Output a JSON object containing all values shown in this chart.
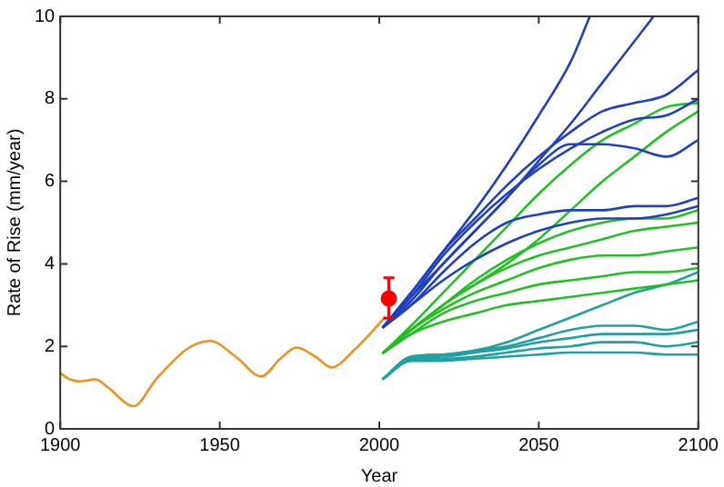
{
  "chart_data": {
    "type": "line",
    "xlabel": "Year",
    "ylabel": "Rate of Rise (mm/year)",
    "xlim": [
      1900,
      2100
    ],
    "xticks": [
      1900,
      1950,
      2000,
      2050,
      2100
    ],
    "ylim": [
      0,
      10
    ],
    "yticks": [
      0,
      2,
      4,
      6,
      8,
      10
    ],
    "marker": "none",
    "line_style": "solid",
    "series": [
      {
        "color": "#f0901e",
        "x": [
          1900,
          1903,
          1906,
          1911,
          1915,
          1923,
          1930,
          1940,
          1947,
          1955,
          1963,
          1969,
          1974,
          1980,
          1985,
          1992,
          2002
        ],
        "values": [
          1.35,
          1.2,
          1.15,
          1.2,
          1.0,
          0.55,
          1.2,
          1.95,
          2.13,
          1.75,
          1.27,
          1.7,
          1.97,
          1.75,
          1.49,
          1.9,
          2.72
        ]
      },
      {
        "color": "#2040c0",
        "x": [
          2001,
          2010,
          2020,
          2030,
          2040,
          2050,
          2060,
          2066
        ],
        "values": [
          2.45,
          3.3,
          4.3,
          5.3,
          6.4,
          7.6,
          8.9,
          10
        ]
      },
      {
        "color": "#2040c0",
        "x": [
          2001,
          2010,
          2020,
          2030,
          2040,
          2050,
          2060,
          2070,
          2080,
          2086
        ],
        "values": [
          2.45,
          3.2,
          4.0,
          4.8,
          5.6,
          6.5,
          7.4,
          8.4,
          9.4,
          10
        ]
      },
      {
        "color": "#2040c0",
        "x": [
          2001,
          2010,
          2020,
          2030,
          2040,
          2050,
          2060,
          2070,
          2080,
          2090,
          2100
        ],
        "values": [
          2.45,
          3.3,
          4.3,
          5.1,
          5.9,
          6.6,
          7.2,
          7.7,
          7.9,
          8.1,
          8.7
        ]
      },
      {
        "color": "#2040c0",
        "x": [
          2001,
          2010,
          2020,
          2030,
          2040,
          2050,
          2060,
          2070,
          2080,
          2090,
          2100
        ],
        "values": [
          2.45,
          3.2,
          4.2,
          5.0,
          5.7,
          6.3,
          6.8,
          7.2,
          7.5,
          7.6,
          8.0
        ]
      },
      {
        "color": "#2040c0",
        "x": [
          2001,
          2010,
          2020,
          2030,
          2040,
          2050,
          2060,
          2070,
          2080,
          2090,
          2100
        ],
        "values": [
          2.45,
          3.1,
          4.0,
          4.8,
          5.6,
          6.4,
          6.9,
          6.9,
          6.8,
          6.6,
          7.0
        ]
      },
      {
        "color": "#2040c0",
        "x": [
          2001,
          2010,
          2020,
          2030,
          2040,
          2050,
          2060,
          2070,
          2080,
          2090,
          2100
        ],
        "values": [
          2.45,
          3.0,
          3.8,
          4.5,
          5.0,
          5.2,
          5.3,
          5.3,
          5.4,
          5.4,
          5.6
        ]
      },
      {
        "color": "#2040c0",
        "x": [
          2001,
          2010,
          2020,
          2030,
          2040,
          2050,
          2060,
          2070,
          2080,
          2090,
          2100
        ],
        "values": [
          2.45,
          3.0,
          3.6,
          4.1,
          4.5,
          4.8,
          5.0,
          5.1,
          5.1,
          5.2,
          5.4
        ]
      },
      {
        "color": "#22c022",
        "x": [
          2001,
          2010,
          2020,
          2030,
          2040,
          2050,
          2060,
          2070,
          2080,
          2090,
          2100
        ],
        "values": [
          1.83,
          2.5,
          3.3,
          4.1,
          4.9,
          5.7,
          6.4,
          7.0,
          7.4,
          7.8,
          7.9
        ]
      },
      {
        "color": "#22c022",
        "x": [
          2001,
          2010,
          2020,
          2030,
          2040,
          2050,
          2060,
          2070,
          2080,
          2090,
          2100
        ],
        "values": [
          1.83,
          2.4,
          3.0,
          3.5,
          4.0,
          4.6,
          5.3,
          6.0,
          6.6,
          7.2,
          7.7
        ]
      },
      {
        "color": "#22c022",
        "x": [
          2001,
          2010,
          2020,
          2030,
          2040,
          2050,
          2060,
          2070,
          2080,
          2090,
          2100
        ],
        "values": [
          1.83,
          2.4,
          3.0,
          3.6,
          4.1,
          4.5,
          4.8,
          5.0,
          5.1,
          5.1,
          5.3
        ]
      },
      {
        "color": "#22c022",
        "x": [
          2001,
          2010,
          2020,
          2030,
          2040,
          2050,
          2060,
          2070,
          2080,
          2090,
          2100
        ],
        "values": [
          1.83,
          2.4,
          3.0,
          3.5,
          3.9,
          4.2,
          4.4,
          4.6,
          4.8,
          4.9,
          5.0
        ]
      },
      {
        "color": "#22c022",
        "x": [
          2001,
          2010,
          2020,
          2030,
          2040,
          2050,
          2060,
          2070,
          2080,
          2090,
          2100
        ],
        "values": [
          1.83,
          2.4,
          2.9,
          3.3,
          3.6,
          3.9,
          4.1,
          4.2,
          4.2,
          4.3,
          4.4
        ]
      },
      {
        "color": "#22c022",
        "x": [
          2001,
          2010,
          2020,
          2030,
          2040,
          2050,
          2060,
          2070,
          2080,
          2090,
          2100
        ],
        "values": [
          1.83,
          2.3,
          2.8,
          3.1,
          3.3,
          3.5,
          3.6,
          3.7,
          3.8,
          3.8,
          3.9
        ]
      },
      {
        "color": "#22c022",
        "x": [
          2001,
          2010,
          2020,
          2030,
          2040,
          2050,
          2060,
          2070,
          2080,
          2090,
          2100
        ],
        "values": [
          1.83,
          2.3,
          2.6,
          2.8,
          3.0,
          3.1,
          3.2,
          3.3,
          3.4,
          3.5,
          3.6
        ]
      },
      {
        "color": "#20a0a0",
        "x": [
          2001,
          2010,
          2020,
          2030,
          2040,
          2050,
          2060,
          2070,
          2080,
          2090,
          2100
        ],
        "values": [
          1.2,
          1.75,
          1.8,
          1.9,
          2.1,
          2.4,
          2.7,
          3.0,
          3.3,
          3.5,
          3.8
        ]
      },
      {
        "color": "#20a0a0",
        "x": [
          2001,
          2010,
          2020,
          2030,
          2040,
          2050,
          2060,
          2070,
          2080,
          2090,
          2100
        ],
        "values": [
          1.2,
          1.75,
          1.8,
          1.9,
          2.0,
          2.2,
          2.4,
          2.5,
          2.5,
          2.4,
          2.6
        ]
      },
      {
        "color": "#20a0a0",
        "x": [
          2001,
          2010,
          2020,
          2030,
          2040,
          2050,
          2060,
          2070,
          2080,
          2090,
          2100
        ],
        "values": [
          1.2,
          1.7,
          1.75,
          1.85,
          1.95,
          2.1,
          2.2,
          2.3,
          2.3,
          2.3,
          2.4
        ]
      },
      {
        "color": "#20a0a0",
        "x": [
          2001,
          2010,
          2020,
          2030,
          2040,
          2050,
          2060,
          2070,
          2080,
          2090,
          2100
        ],
        "values": [
          1.2,
          1.7,
          1.7,
          1.75,
          1.85,
          1.95,
          2.0,
          2.1,
          2.1,
          2.0,
          2.1
        ]
      },
      {
        "color": "#20a0a0",
        "x": [
          2001,
          2010,
          2020,
          2030,
          2040,
          2050,
          2060,
          2070,
          2080,
          2090,
          2100
        ],
        "values": [
          1.2,
          1.65,
          1.65,
          1.7,
          1.75,
          1.8,
          1.85,
          1.85,
          1.85,
          1.8,
          1.8
        ]
      },
      {
        "type": "scatter",
        "marker": "circle",
        "color": "#ff0000",
        "x": [
          2003
        ],
        "values": [
          3.16
        ],
        "errors": [
          [
            2.68,
            3.66
          ]
        ]
      }
    ]
  }
}
